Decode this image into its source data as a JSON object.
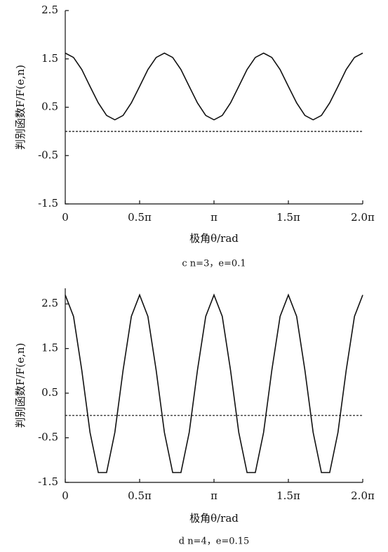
{
  "chart_data": [
    {
      "type": "line",
      "caption": "c n=3，e=0.1",
      "x_label": "极角θ/rad",
      "y_label": "判别函数F/F(e,n)",
      "x": [
        0,
        0.1745,
        0.3491,
        0.5236,
        0.6981,
        0.8727,
        1.0472,
        1.2217,
        1.3963,
        1.5708,
        1.7453,
        1.9199,
        2.0944,
        2.2689,
        2.4435,
        2.618,
        2.7925,
        2.9671,
        3.1416,
        3.3161,
        3.4907,
        3.6652,
        3.8397,
        4.0143,
        4.1888,
        4.3633,
        4.5379,
        4.7124,
        4.8869,
        5.0615,
        5.236,
        5.4105,
        5.5851,
        5.7596,
        5.9341,
        6.1087,
        6.2832
      ],
      "series": [
        {
          "color": "#111111",
          "values": [
            1.62,
            1.53,
            1.28,
            0.93,
            0.59,
            0.33,
            0.24,
            0.33,
            0.59,
            0.93,
            1.28,
            1.53,
            1.62,
            1.53,
            1.28,
            0.93,
            0.59,
            0.33,
            0.24,
            0.33,
            0.59,
            0.93,
            1.28,
            1.53,
            1.62,
            1.53,
            1.28,
            0.93,
            0.59,
            0.33,
            0.24,
            0.33,
            0.59,
            0.93,
            1.28,
            1.53,
            1.62
          ]
        }
      ],
      "reference_line": 0,
      "xlim": [
        0,
        6.2832
      ],
      "xticks": [
        0,
        {
          "value": 1.5708,
          "label": "0.5π"
        },
        {
          "value": 3.1416,
          "label": "π"
        },
        {
          "value": 4.7124,
          "label": "1.5π"
        },
        {
          "value": 6.2832,
          "label": "2.0π"
        }
      ],
      "ylim": [
        -1.5,
        2.5
      ],
      "yticks": [
        2.5,
        1.5,
        0.5,
        -0.5,
        -1.5
      ]
    },
    {
      "type": "line",
      "caption": "d n=4，e=0.15",
      "x_label": "极角θ/rad",
      "y_label": "判别函数F/F(e,n)",
      "x": [
        0,
        0.1745,
        0.3491,
        0.5236,
        0.6981,
        0.8727,
        1.0472,
        1.2217,
        1.3963,
        1.5708,
        1.7453,
        1.9199,
        2.0944,
        2.2689,
        2.4435,
        2.618,
        2.7925,
        2.9671,
        3.1416,
        3.3161,
        3.4907,
        3.6652,
        3.8397,
        4.0143,
        4.1888,
        4.3633,
        4.5379,
        4.7124,
        4.8869,
        5.0615,
        5.236,
        5.4105,
        5.5851,
        5.7596,
        5.9341,
        6.1087,
        6.2832
      ],
      "series": [
        {
          "color": "#111111",
          "values": [
            2.7,
            2.22,
            1.01,
            -0.38,
            -1.28,
            -1.28,
            -0.38,
            1.01,
            2.22,
            2.7,
            2.22,
            1.01,
            -0.38,
            -1.28,
            -1.28,
            -0.38,
            1.01,
            2.22,
            2.7,
            2.22,
            1.01,
            -0.38,
            -1.28,
            -1.28,
            -0.38,
            1.01,
            2.22,
            2.7,
            2.22,
            1.01,
            -0.38,
            -1.28,
            -1.28,
            -0.38,
            1.01,
            2.22,
            2.7
          ]
        }
      ],
      "reference_line": 0,
      "xlim": [
        0,
        6.2832
      ],
      "xticks": [
        0,
        {
          "value": 1.5708,
          "label": "0.5π"
        },
        {
          "value": 3.1416,
          "label": "π"
        },
        {
          "value": 4.7124,
          "label": "1.5π"
        },
        {
          "value": 6.2832,
          "label": "2.0π"
        }
      ],
      "ylim": [
        -1.5,
        2.85
      ],
      "yticks": [
        2.5,
        1.5,
        0.5,
        -0.5,
        -1.5
      ]
    }
  ]
}
